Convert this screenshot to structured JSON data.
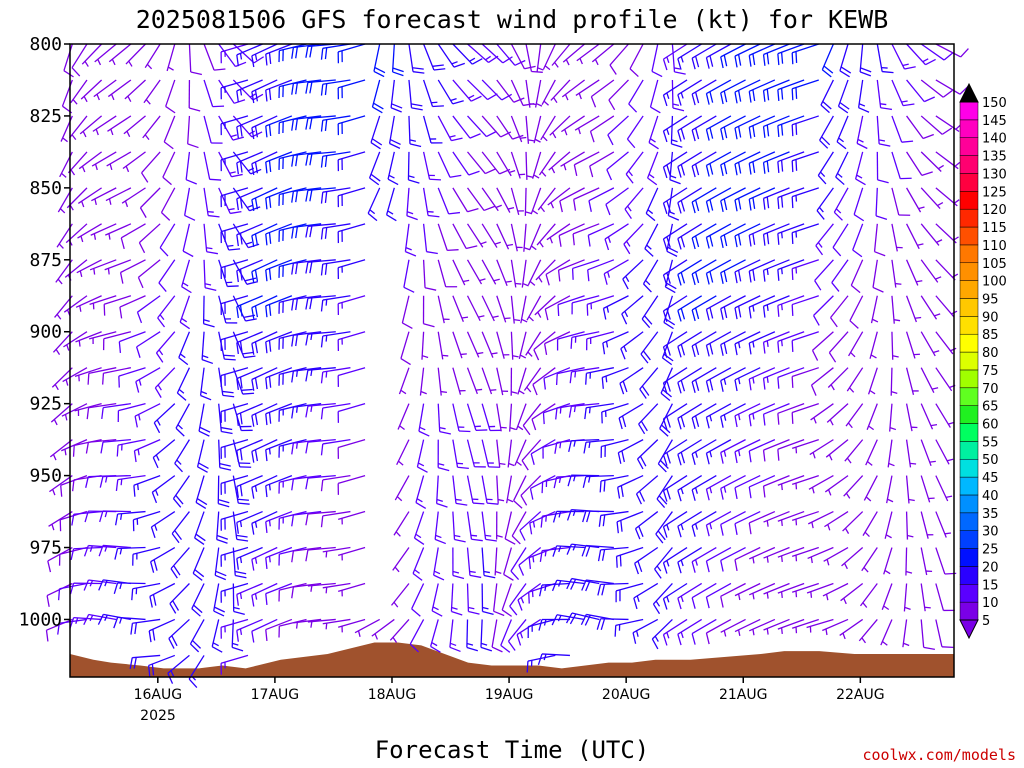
{
  "chart_data": {
    "type": "wind-barb-profile",
    "title": "2025081506 GFS forecast wind profile (kt) for KEWB",
    "xlabel": "Forecast Time (UTC)",
    "xlim": [
      0,
      7.55
    ],
    "ylim": [
      1020,
      800
    ],
    "pressure_levels": [
      800,
      825,
      850,
      875,
      900,
      925,
      950,
      975,
      1000
    ],
    "barb_levels": [
      800,
      812.5,
      825,
      837.5,
      850,
      862.5,
      875,
      887.5,
      900,
      912.5,
      925,
      937.5,
      950,
      962.5,
      975,
      987.5,
      1000,
      1012.5
    ],
    "x_ticks": [
      {
        "value": 0.75,
        "label": "16AUG"
      },
      {
        "value": 1.75,
        "label": "17AUG"
      },
      {
        "value": 2.75,
        "label": "18AUG"
      },
      {
        "value": 3.75,
        "label": "19AUG"
      },
      {
        "value": 4.75,
        "label": "20AUG"
      },
      {
        "value": 5.75,
        "label": "21AUG"
      },
      {
        "value": 6.75,
        "label": "22AUG"
      }
    ],
    "year_label": "2025",
    "colorbar": {
      "levels": [
        5,
        10,
        15,
        20,
        25,
        30,
        35,
        40,
        45,
        50,
        55,
        60,
        65,
        70,
        75,
        80,
        85,
        90,
        95,
        100,
        105,
        110,
        115,
        120,
        125,
        130,
        135,
        140,
        145,
        150
      ],
      "colors": [
        "#7a00e6",
        "#5a00ff",
        "#2a00ff",
        "#0010ff",
        "#0040ff",
        "#0068ff",
        "#0090ff",
        "#00b8ff",
        "#00e0e0",
        "#00f0a0",
        "#00ff60",
        "#20f020",
        "#60ff20",
        "#a0ff00",
        "#ddff00",
        "#ffff00",
        "#ffe000",
        "#ffc800",
        "#ffa800",
        "#ff9000",
        "#ff7800",
        "#ff5000",
        "#ff2800",
        "#ff0000",
        "#ff0040",
        "#ff0070",
        "#ff0098",
        "#ff00c0",
        "#ff00e8",
        "#000000"
      ]
    },
    "terrain": {
      "color": "#a0522d",
      "x": [
        0,
        0.1,
        0.2,
        0.35,
        0.6,
        0.8,
        1.1,
        1.3,
        1.5,
        1.6,
        1.8,
        2.0,
        2.2,
        2.4,
        2.6,
        2.8,
        3.0,
        3.2,
        3.4,
        3.6,
        3.8,
        4.0,
        4.2,
        4.4,
        4.6,
        4.8,
        5.0,
        5.3,
        5.6,
        5.9,
        6.1,
        6.4,
        6.7,
        7.0,
        7.3,
        7.55
      ],
      "y": [
        1012,
        1013,
        1014,
        1015,
        1016,
        1017,
        1017,
        1016,
        1017,
        1016,
        1014,
        1013,
        1012,
        1010,
        1008,
        1008,
        1009,
        1012,
        1015,
        1016,
        1016,
        1016,
        1017,
        1016,
        1015,
        1015,
        1014,
        1014,
        1013,
        1012,
        1011,
        1011,
        1012,
        1012,
        1012,
        1012
      ]
    },
    "wind_note": "barbs drawn per level/time with direction (from, deg) and speed (kt)"
  },
  "credit": "coolwx.com/models"
}
